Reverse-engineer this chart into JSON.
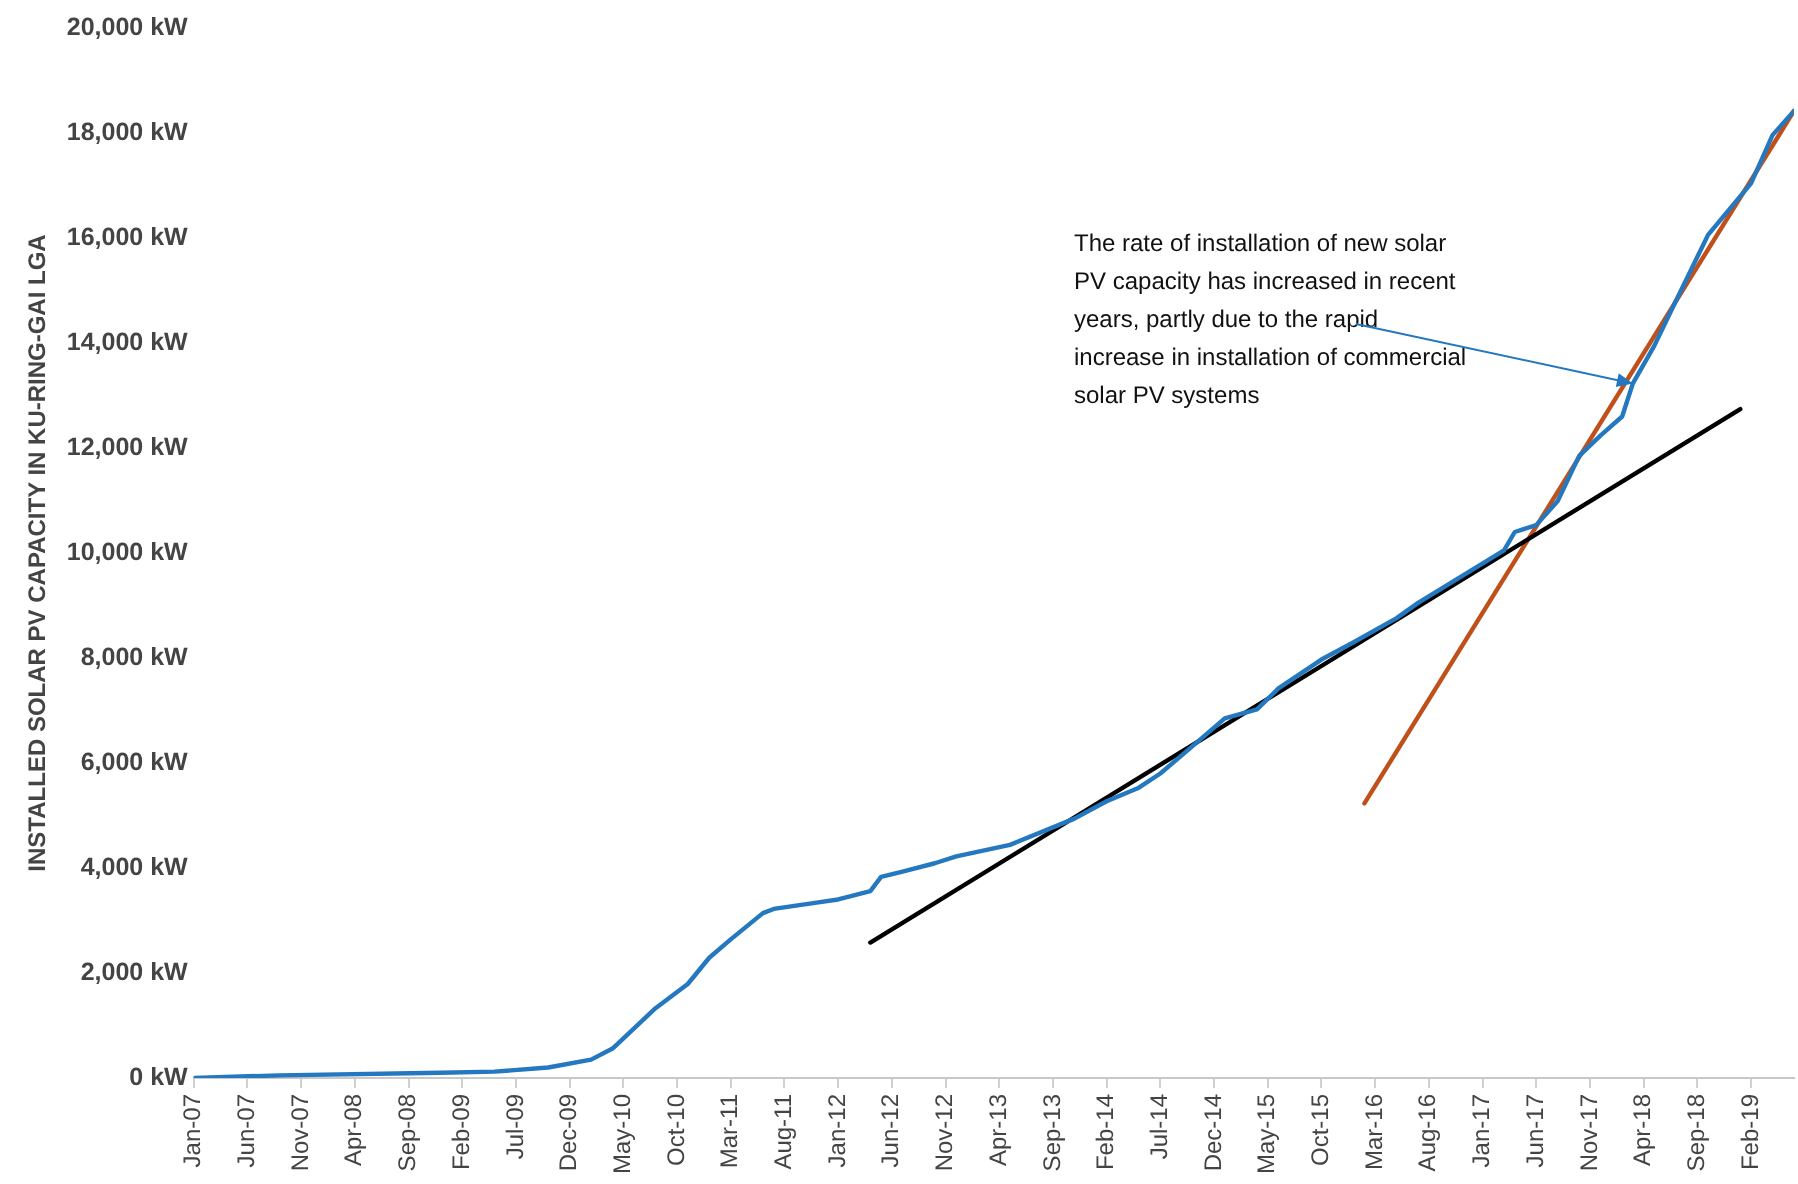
{
  "chart_data": {
    "type": "line",
    "ylabel": "INSTALLED SOLAR PV CAPACITY IN KU-RING-GAI LGA",
    "xlim": [
      "2007-01",
      "2019-06"
    ],
    "xticks": [
      {
        "value": "2007-01",
        "label": "Jan-07"
      },
      {
        "value": "2007-06",
        "label": "Jun-07"
      },
      {
        "value": "2007-11",
        "label": "Nov-07"
      },
      {
        "value": "2008-04",
        "label": "Apr-08"
      },
      {
        "value": "2008-09",
        "label": "Sep-08"
      },
      {
        "value": "2009-02",
        "label": "Feb-09"
      },
      {
        "value": "2009-07",
        "label": "Jul-09"
      },
      {
        "value": "2009-12",
        "label": "Dec-09"
      },
      {
        "value": "2010-05",
        "label": "May-10"
      },
      {
        "value": "2010-10",
        "label": "Oct-10"
      },
      {
        "value": "2011-03",
        "label": "Mar-11"
      },
      {
        "value": "2011-08",
        "label": "Aug-11"
      },
      {
        "value": "2012-01",
        "label": "Jan-12"
      },
      {
        "value": "2012-06",
        "label": "Jun-12"
      },
      {
        "value": "2012-11",
        "label": "Nov-12"
      },
      {
        "value": "2013-04",
        "label": "Apr-13"
      },
      {
        "value": "2013-09",
        "label": "Sep-13"
      },
      {
        "value": "2014-02",
        "label": "Feb-14"
      },
      {
        "value": "2014-07",
        "label": "Jul-14"
      },
      {
        "value": "2014-12",
        "label": "Dec-14"
      },
      {
        "value": "2015-05",
        "label": "May-15"
      },
      {
        "value": "2015-10",
        "label": "Oct-15"
      },
      {
        "value": "2016-03",
        "label": "Mar-16"
      },
      {
        "value": "2016-08",
        "label": "Aug-16"
      },
      {
        "value": "2017-01",
        "label": "Jan-17"
      },
      {
        "value": "2017-06",
        "label": "Jun-17"
      },
      {
        "value": "2017-11",
        "label": "Nov-17"
      },
      {
        "value": "2018-04",
        "label": "Apr-18"
      },
      {
        "value": "2018-09",
        "label": "Sep-18"
      },
      {
        "value": "2019-02",
        "label": "Feb-19"
      }
    ],
    "ylim": [
      0,
      20000
    ],
    "yticks": [
      {
        "value": 0,
        "label": "0 kW"
      },
      {
        "value": 2000,
        "label": "2,000 kW"
      },
      {
        "value": 4000,
        "label": "4,000 kW"
      },
      {
        "value": 6000,
        "label": "6,000 kW"
      },
      {
        "value": 8000,
        "label": "8,000 kW"
      },
      {
        "value": 10000,
        "label": "10,000 kW"
      },
      {
        "value": 12000,
        "label": "12,000 kW"
      },
      {
        "value": 14000,
        "label": "14,000 kW"
      },
      {
        "value": 16000,
        "label": "16,000 kW"
      },
      {
        "value": 18000,
        "label": "18,000 kW"
      },
      {
        "value": 20000,
        "label": "20,000 kW"
      }
    ],
    "grid": false,
    "legend": false,
    "marker": "none",
    "line_style": "solid",
    "annotations": [
      {
        "text": "The rate of installation of new solar PV capacity has increased in recent years, partly due to the rapid increase in installation of commercial solar PV systems",
        "x": "2018-03",
        "y": 13230
      }
    ],
    "series": [
      {
        "color": "#2478c0",
        "x": [
          "2007-01",
          "2007-09",
          "2008-12",
          "2009-05",
          "2009-10",
          "2010-02",
          "2010-04",
          "2010-08",
          "2010-11",
          "2011-01",
          "2011-03",
          "2011-06",
          "2011-07",
          "2011-11",
          "2012-01",
          "2012-04",
          "2012-05",
          "2012-07",
          "2012-10",
          "2012-12",
          "2013-05",
          "2013-11",
          "2014-02",
          "2014-05",
          "2014-07",
          "2014-10",
          "2015-01",
          "2015-04",
          "2015-06",
          "2015-10",
          "2016-01",
          "2016-05",
          "2016-07",
          "2016-11",
          "2017-03",
          "2017-04",
          "2017-06",
          "2017-08",
          "2017-10",
          "2017-12",
          "2018-02",
          "2018-03",
          "2018-05",
          "2018-07",
          "2018-10",
          "2019-02",
          "2019-04",
          "2019-06"
        ],
        "values": [
          0,
          50,
          100,
          120,
          200,
          350,
          560,
          1330,
          1790,
          2290,
          2640,
          3140,
          3220,
          3340,
          3400,
          3560,
          3830,
          3930,
          4090,
          4220,
          4440,
          4940,
          5270,
          5530,
          5800,
          6320,
          6850,
          7020,
          7420,
          7970,
          8300,
          8760,
          9050,
          9550,
          10050,
          10400,
          10530,
          10990,
          11850,
          12240,
          12600,
          13230,
          13950,
          14800,
          16060,
          17040,
          17960,
          18420
        ]
      },
      {
        "color": "#000000",
        "x": [
          "2012-04",
          "2019-01"
        ],
        "values": [
          2580,
          12740
        ]
      },
      {
        "color": "#c0501a",
        "x": [
          "2016-02",
          "2019-06"
        ],
        "values": [
          5230,
          18420
        ]
      }
    ]
  }
}
